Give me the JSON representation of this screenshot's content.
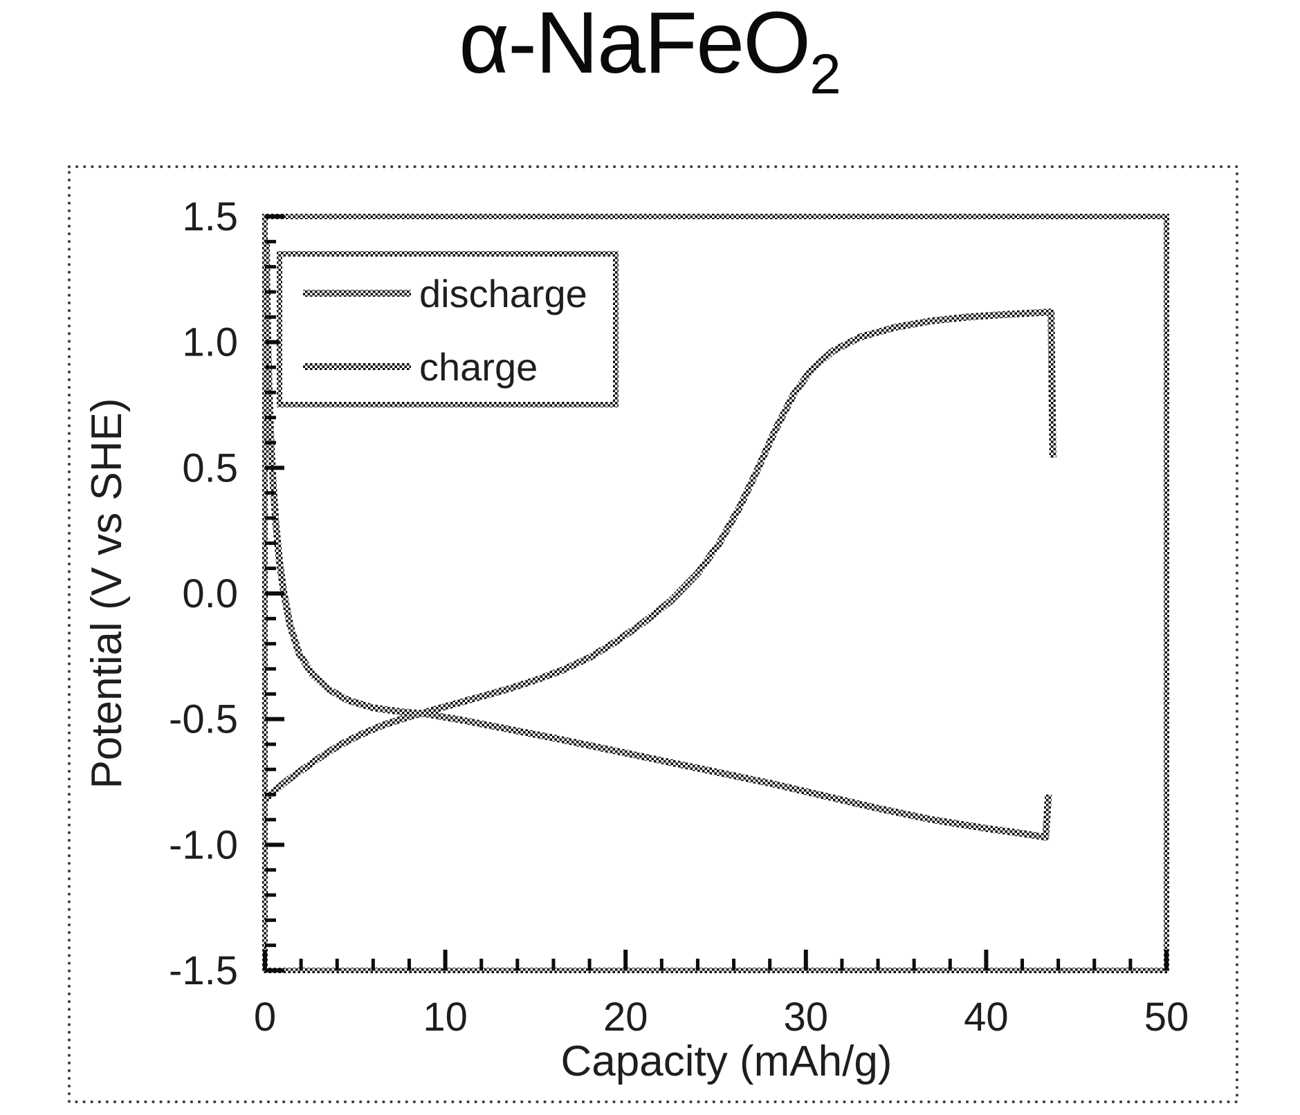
{
  "title": {
    "main": "α-NaFeO",
    "sub": "2"
  },
  "colors": {
    "ink": "#0d0d0d",
    "text": "#1e1e1e",
    "background": "#ffffff"
  },
  "legend": {
    "items": [
      "discharge",
      "charge"
    ]
  },
  "chart_data": {
    "type": "line",
    "title": "α-NaFeO2",
    "xlabel": "Capacity (mAh/g)",
    "ylabel": "Potential (V vs SHE)",
    "xlim": [
      0,
      50
    ],
    "ylim": [
      -1.5,
      1.5
    ],
    "grid": false,
    "legend_position": "upper left",
    "x_ticks": [
      {
        "v": 0,
        "label": "0"
      },
      {
        "v": 10,
        "label": "10"
      },
      {
        "v": 20,
        "label": "20"
      },
      {
        "v": 30,
        "label": "30"
      },
      {
        "v": 40,
        "label": "40"
      },
      {
        "v": 50,
        "label": "50"
      }
    ],
    "x_minor_step": 2,
    "y_ticks": [
      {
        "v": 1.5,
        "label": "1.5"
      },
      {
        "v": 1.0,
        "label": "1.0"
      },
      {
        "v": 0.5,
        "label": "0.5"
      },
      {
        "v": 0.0,
        "label": "0.0"
      },
      {
        "v": -0.5,
        "label": "-0.5"
      },
      {
        "v": -1.0,
        "label": "-1.0"
      },
      {
        "v": -1.5,
        "label": "-1.5"
      }
    ],
    "y_minor_step": 0.1,
    "series": [
      {
        "name": "discharge",
        "points": [
          [
            0.08,
            1.4
          ],
          [
            0.1,
            1.22
          ],
          [
            0.15,
            1.02
          ],
          [
            0.22,
            0.82
          ],
          [
            0.32,
            0.62
          ],
          [
            0.45,
            0.44
          ],
          [
            0.6,
            0.28
          ],
          [
            0.8,
            0.13
          ],
          [
            1.05,
            0.0
          ],
          [
            1.4,
            -0.13
          ],
          [
            1.9,
            -0.24
          ],
          [
            2.6,
            -0.32
          ],
          [
            3.5,
            -0.38
          ],
          [
            4.6,
            -0.425
          ],
          [
            6.0,
            -0.455
          ],
          [
            7.5,
            -0.47
          ],
          [
            9.0,
            -0.48
          ],
          [
            11.0,
            -0.505
          ],
          [
            13.5,
            -0.54
          ],
          [
            16.0,
            -0.575
          ],
          [
            19.0,
            -0.62
          ],
          [
            22.0,
            -0.665
          ],
          [
            25.0,
            -0.71
          ],
          [
            28.0,
            -0.755
          ],
          [
            31.0,
            -0.805
          ],
          [
            34.0,
            -0.855
          ],
          [
            37.0,
            -0.9
          ],
          [
            40.0,
            -0.935
          ],
          [
            42.0,
            -0.955
          ],
          [
            43.3,
            -0.97
          ],
          [
            43.45,
            -0.8
          ]
        ]
      },
      {
        "name": "charge",
        "points": [
          [
            0.05,
            -0.82
          ],
          [
            0.7,
            -0.775
          ],
          [
            1.4,
            -0.735
          ],
          [
            2.2,
            -0.695
          ],
          [
            3.1,
            -0.65
          ],
          [
            4.1,
            -0.605
          ],
          [
            5.2,
            -0.565
          ],
          [
            6.5,
            -0.525
          ],
          [
            7.8,
            -0.495
          ],
          [
            9.0,
            -0.47
          ],
          [
            10.5,
            -0.44
          ],
          [
            12.0,
            -0.41
          ],
          [
            13.5,
            -0.38
          ],
          [
            15.0,
            -0.345
          ],
          [
            16.5,
            -0.305
          ],
          [
            18.0,
            -0.255
          ],
          [
            19.5,
            -0.19
          ],
          [
            21.0,
            -0.115
          ],
          [
            22.5,
            -0.03
          ],
          [
            24.0,
            0.08
          ],
          [
            25.2,
            0.2
          ],
          [
            26.3,
            0.34
          ],
          [
            27.3,
            0.49
          ],
          [
            28.3,
            0.65
          ],
          [
            29.3,
            0.79
          ],
          [
            30.3,
            0.89
          ],
          [
            31.5,
            0.965
          ],
          [
            33.0,
            1.02
          ],
          [
            35.0,
            1.06
          ],
          [
            37.0,
            1.085
          ],
          [
            39.0,
            1.1
          ],
          [
            41.0,
            1.11
          ],
          [
            43.6,
            1.12
          ],
          [
            43.7,
            0.54
          ]
        ]
      }
    ]
  }
}
